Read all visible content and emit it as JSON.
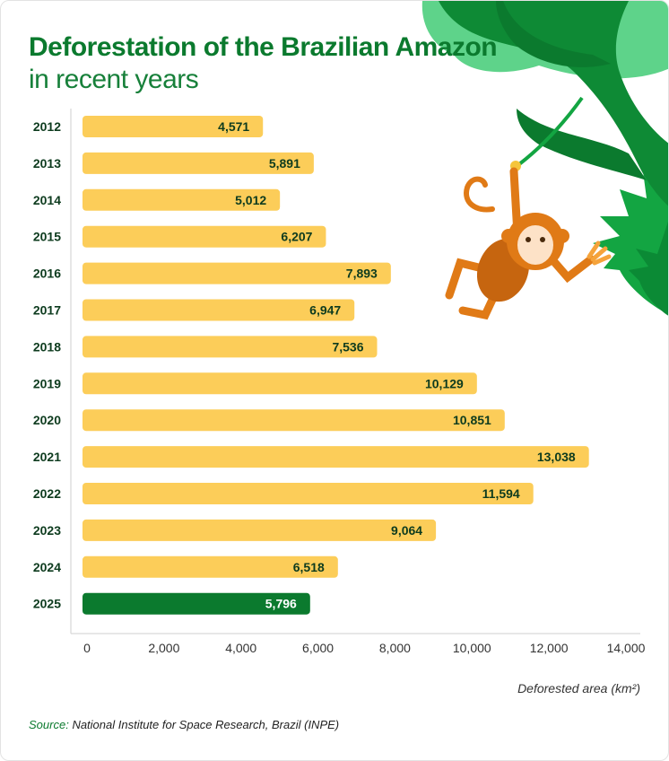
{
  "title": {
    "bold": "Deforestation of the Brazilian Amazon",
    "regular": "in recent years"
  },
  "source": {
    "label": "Source:",
    "text": "National Institute for Space Research, Brazil (INPE)"
  },
  "colors": {
    "bar": "#fccd59",
    "highlight_bar": "#0b7a2e",
    "title": "#0b7a2e",
    "leaf_light": "#5ed38a",
    "leaf_dark": "#0e8a35",
    "monkey": "#e07a16"
  },
  "chart_data": {
    "type": "bar",
    "orientation": "horizontal",
    "categories": [
      "2012",
      "2013",
      "2014",
      "2015",
      "2016",
      "2017",
      "2018",
      "2019",
      "2020",
      "2021",
      "2022",
      "2023",
      "2024",
      "2025"
    ],
    "values": [
      4571,
      5891,
      5012,
      6207,
      7893,
      6947,
      7536,
      10129,
      10851,
      13038,
      11594,
      9064,
      6518,
      5796
    ],
    "value_labels": [
      "4,571",
      "5,891",
      "5,012",
      "6,207",
      "7,893",
      "6,947",
      "7,536",
      "10,129",
      "10,851",
      "13,038",
      "11,594",
      "9,064",
      "6,518",
      "5,796"
    ],
    "highlight_category": "2025",
    "xlabel": "Deforested area (km²)",
    "xlim": [
      0,
      14000
    ],
    "xticks": [
      0,
      2000,
      4000,
      6000,
      8000,
      10000,
      12000,
      14000
    ],
    "xtick_labels": [
      "0",
      "2,000",
      "4,000",
      "6,000",
      "8,000",
      "10,000",
      "12,000",
      "14,000"
    ],
    "grid": false
  }
}
